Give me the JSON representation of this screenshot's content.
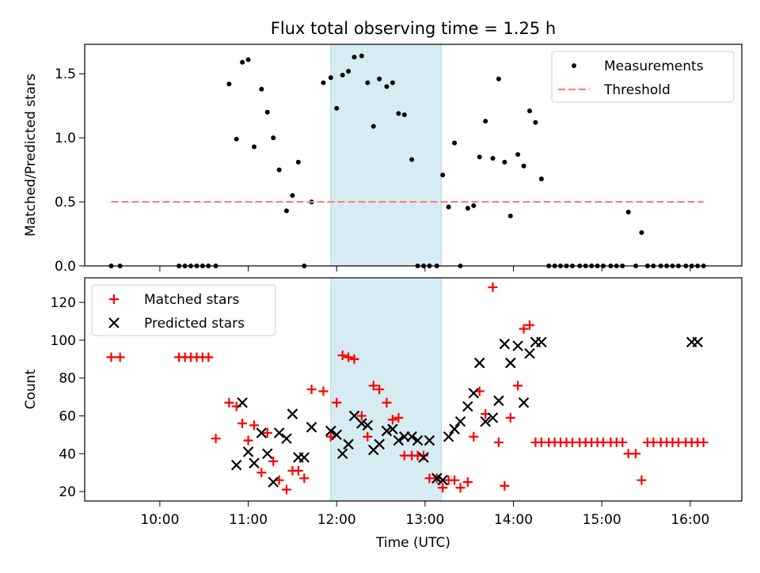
{
  "figure": {
    "title": "Flux total observing time = 1.25 h"
  },
  "chart_data": [
    {
      "type": "scatter",
      "panel": "top",
      "xlabel": "",
      "ylabel": "Matched/Predicted stars",
      "xlim": [
        "09:09",
        "16:35"
      ],
      "ylim": [
        0,
        1.73
      ],
      "yticks": [
        0.0,
        0.5,
        1.0,
        1.5
      ],
      "ytick_labels": [
        "0.0",
        "0.5",
        "1.0",
        "1.5"
      ],
      "legend": [
        "Measurements",
        "Threshold"
      ],
      "legend_position": "upper right",
      "shaded_span": [
        "11:56",
        "13:11"
      ],
      "series": [
        {
          "name": "Measurements",
          "marker": "dot",
          "color": "#000000",
          "x": [
            "09:27",
            "09:33",
            "10:13",
            "10:17",
            "10:21",
            "10:25",
            "10:29",
            "10:33",
            "10:38",
            "10:47",
            "10:52",
            "10:56",
            "11:00",
            "11:04",
            "11:09",
            "11:13",
            "11:17",
            "11:21",
            "11:26",
            "11:30",
            "11:34",
            "11:38",
            "11:43",
            "11:51",
            "11:56",
            "12:00",
            "12:04",
            "12:08",
            "12:12",
            "12:17",
            "12:21",
            "12:25",
            "12:29",
            "12:34",
            "12:38",
            "12:42",
            "12:46",
            "12:51",
            "12:55",
            "12:59",
            "13:03",
            "13:08",
            "13:12",
            "13:16",
            "13:20",
            "13:24",
            "13:29",
            "13:33",
            "13:37",
            "13:41",
            "13:46",
            "13:50",
            "13:54",
            "13:58",
            "14:03",
            "14:07",
            "14:11",
            "14:15",
            "14:19",
            "14:24",
            "14:28",
            "14:32",
            "14:36",
            "14:40",
            "14:45",
            "14:49",
            "14:53",
            "14:57",
            "15:01",
            "15:06",
            "15:10",
            "15:14",
            "15:18",
            "15:23",
            "15:27",
            "15:31",
            "15:35",
            "15:40",
            "15:44",
            "15:48",
            "15:52",
            "15:57",
            "16:01",
            "16:05",
            "16:09"
          ],
          "y": [
            0.0,
            0.0,
            0.0,
            0.0,
            0.0,
            0.0,
            0.0,
            0.0,
            0.0,
            1.42,
            0.99,
            1.59,
            1.61,
            0.93,
            1.38,
            1.2,
            1.0,
            0.75,
            0.43,
            0.55,
            0.81,
            0.0,
            0.5,
            1.43,
            1.47,
            1.23,
            1.49,
            1.52,
            1.63,
            1.64,
            1.43,
            1.09,
            1.46,
            1.4,
            1.43,
            1.19,
            1.18,
            0.83,
            0.0,
            0.0,
            0.0,
            0.0,
            0.71,
            0.46,
            0.96,
            0.0,
            0.45,
            0.47,
            0.85,
            1.13,
            0.84,
            1.46,
            0.81,
            0.39,
            0.87,
            0.78,
            1.21,
            1.12,
            0.68,
            0.0,
            0.0,
            0.0,
            0.0,
            0.0,
            0.0,
            0.0,
            0.0,
            0.0,
            0.0,
            0.0,
            0.0,
            0.0,
            0.42,
            0.0,
            0.26,
            0.0,
            0.0,
            0.0,
            0.0,
            0.0,
            0.0,
            0.0,
            0.0,
            0.0,
            0.0
          ]
        },
        {
          "name": "Threshold",
          "style": "dashed",
          "color": "#ff7f7f",
          "x": [
            "09:27",
            "16:09"
          ],
          "y": [
            0.5,
            0.5
          ]
        }
      ]
    },
    {
      "type": "scatter",
      "panel": "bottom",
      "xlabel": "Time (UTC)",
      "ylabel": "Count",
      "xlim": [
        "09:09",
        "16:35"
      ],
      "ylim": [
        15,
        133
      ],
      "xticks": [
        "10:00",
        "11:00",
        "12:00",
        "13:00",
        "14:00",
        "15:00",
        "16:00"
      ],
      "yticks": [
        20,
        40,
        60,
        80,
        100,
        120
      ],
      "ytick_labels": [
        "20",
        "40",
        "60",
        "80",
        "100",
        "120"
      ],
      "legend": [
        "Matched stars",
        "Predicted stars"
      ],
      "legend_position": "upper left",
      "shaded_span": [
        "11:56",
        "13:11"
      ],
      "series": [
        {
          "name": "Matched stars",
          "marker": "plus",
          "color": "#ff0000",
          "x": [
            "09:27",
            "09:33",
            "10:13",
            "10:17",
            "10:21",
            "10:25",
            "10:29",
            "10:33",
            "10:38",
            "10:47",
            "10:52",
            "10:56",
            "11:00",
            "11:04",
            "11:09",
            "11:13",
            "11:17",
            "11:21",
            "11:26",
            "11:30",
            "11:34",
            "11:38",
            "11:43",
            "11:51",
            "11:56",
            "12:00",
            "12:04",
            "12:08",
            "12:12",
            "12:17",
            "12:21",
            "12:25",
            "12:29",
            "12:34",
            "12:38",
            "12:42",
            "12:46",
            "12:51",
            "12:55",
            "12:59",
            "13:03",
            "13:08",
            "13:12",
            "13:16",
            "13:20",
            "13:24",
            "13:29",
            "13:33",
            "13:37",
            "13:41",
            "13:46",
            "13:50",
            "13:54",
            "13:58",
            "14:03",
            "14:07",
            "14:11",
            "14:15",
            "14:19",
            "14:24",
            "14:28",
            "14:32",
            "14:36",
            "14:40",
            "14:45",
            "14:49",
            "14:53",
            "14:57",
            "15:01",
            "15:06",
            "15:10",
            "15:14",
            "15:18",
            "15:23",
            "15:27",
            "15:31",
            "15:35",
            "15:40",
            "15:44",
            "15:48",
            "15:52",
            "15:57",
            "16:01",
            "16:05",
            "16:09"
          ],
          "y": [
            91,
            91,
            91,
            91,
            91,
            91,
            91,
            91,
            48,
            67,
            65,
            56,
            47,
            55,
            30,
            51,
            36,
            26,
            21,
            31,
            31,
            27,
            74,
            73,
            49,
            67,
            92,
            91,
            90,
            60,
            49,
            76,
            74,
            67,
            58,
            59,
            39,
            39,
            39,
            39,
            27,
            27,
            22,
            26,
            26,
            22,
            25,
            49,
            73,
            61,
            128,
            46,
            23,
            59,
            76,
            106,
            108,
            46,
            46,
            46,
            46,
            46,
            46,
            46,
            46,
            46,
            46,
            46,
            46,
            46,
            46,
            46,
            40,
            40,
            26,
            46,
            46,
            46,
            46,
            46,
            46,
            46,
            46,
            46,
            46
          ]
        },
        {
          "name": "Predicted stars",
          "marker": "x",
          "color": "#000000",
          "x": [
            "10:52",
            "10:56",
            "11:00",
            "11:04",
            "11:09",
            "11:13",
            "11:17",
            "11:21",
            "11:26",
            "11:30",
            "11:34",
            "11:38",
            "11:43",
            "11:56",
            "12:00",
            "12:04",
            "12:08",
            "12:12",
            "12:17",
            "12:21",
            "12:25",
            "12:29",
            "12:34",
            "12:38",
            "12:42",
            "12:46",
            "12:51",
            "12:55",
            "12:59",
            "13:03",
            "13:08",
            "13:12",
            "13:16",
            "13:20",
            "13:24",
            "13:29",
            "13:33",
            "13:37",
            "13:41",
            "13:46",
            "13:50",
            "13:54",
            "13:58",
            "14:03",
            "14:07",
            "14:11",
            "14:15",
            "14:19",
            "16:01",
            "16:05"
          ],
          "y": [
            34,
            67,
            41,
            35,
            51,
            40,
            25,
            51,
            48,
            61,
            38,
            38,
            54,
            52,
            50,
            40,
            45,
            60,
            56,
            55,
            42,
            45,
            52,
            53,
            47,
            49,
            49,
            47,
            38,
            47,
            27,
            26,
            49,
            53,
            57,
            65,
            72,
            88,
            57,
            59,
            68,
            98,
            88,
            97,
            67,
            93,
            99,
            99,
            99,
            99
          ]
        }
      ]
    }
  ]
}
